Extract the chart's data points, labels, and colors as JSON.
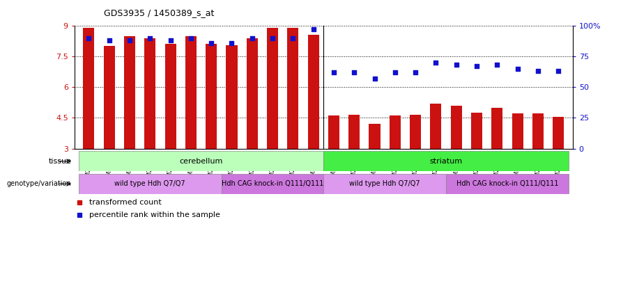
{
  "title": "GDS3935 / 1450389_s_at",
  "samples": [
    "GSM229450",
    "GSM229451",
    "GSM229452",
    "GSM229456",
    "GSM229457",
    "GSM229458",
    "GSM229453",
    "GSM229454",
    "GSM229455",
    "GSM229459",
    "GSM229460",
    "GSM229461",
    "GSM229429",
    "GSM229430",
    "GSM229431",
    "GSM229435",
    "GSM229436",
    "GSM229437",
    "GSM229432",
    "GSM229433",
    "GSM229434",
    "GSM229438",
    "GSM229439",
    "GSM229440"
  ],
  "bar_values": [
    8.9,
    8.0,
    8.5,
    8.4,
    8.1,
    8.5,
    8.1,
    8.05,
    8.4,
    8.9,
    8.9,
    8.55,
    4.6,
    4.65,
    4.2,
    4.6,
    4.65,
    5.2,
    5.1,
    4.75,
    5.0,
    4.7,
    4.7,
    4.55
  ],
  "percentile_values_right": [
    90,
    88,
    88,
    90,
    88,
    90,
    86,
    86,
    90,
    90,
    90,
    97,
    62,
    62,
    57,
    62,
    62,
    70,
    68,
    67,
    68,
    65,
    63,
    63
  ],
  "ylim_left": [
    3,
    9
  ],
  "ylim_right": [
    0,
    100
  ],
  "yticks_left": [
    3,
    4.5,
    6,
    7.5,
    9
  ],
  "yticks_right": [
    0,
    25,
    50,
    75,
    100
  ],
  "bar_color": "#cc1111",
  "percentile_color": "#1111cc",
  "tissue_groups": [
    {
      "label": "cerebellum",
      "start": 0,
      "end": 12,
      "color": "#bbffbb"
    },
    {
      "label": "striatum",
      "start": 12,
      "end": 24,
      "color": "#44ee44"
    }
  ],
  "genotype_groups": [
    {
      "label": "wild type Hdh Q7/Q7",
      "start": 0,
      "end": 7,
      "color": "#dd99ee"
    },
    {
      "label": "Hdh CAG knock-in Q111/Q111",
      "start": 7,
      "end": 12,
      "color": "#cc77dd"
    },
    {
      "label": "wild type Hdh Q7/Q7",
      "start": 12,
      "end": 18,
      "color": "#dd99ee"
    },
    {
      "label": "Hdh CAG knock-in Q111/Q111",
      "start": 18,
      "end": 24,
      "color": "#cc77dd"
    }
  ],
  "legend_items": [
    {
      "label": "transformed count",
      "color": "#cc1111"
    },
    {
      "label": "percentile rank within the sample",
      "color": "#1111cc"
    }
  ],
  "bar_width": 0.55,
  "n_samples": 24
}
